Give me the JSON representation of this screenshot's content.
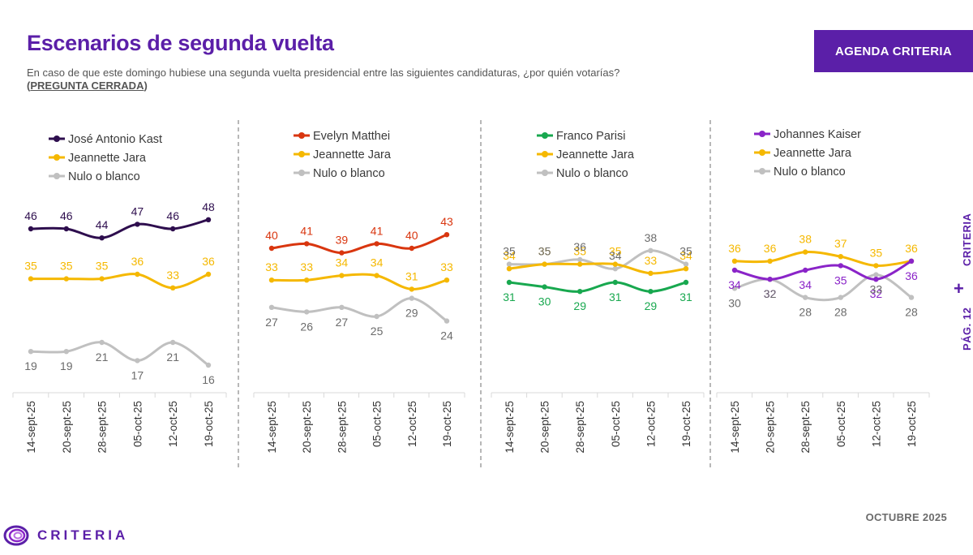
{
  "header": {
    "title": "Escenarios de segunda vuelta",
    "subtitle": "En caso de que este domingo hubiese una segunda vuelta presidencial entre las siguientes candidaturas, ¿por quién votarías?",
    "closed_question": "PREGUNTA CERRADA",
    "badge": "AGENDA CRITERIA"
  },
  "side": {
    "page": "PÁG. 12",
    "brand": "CRITERIA",
    "plus": "+"
  },
  "footer": {
    "logo_text": "CRITERIA",
    "date": "OCTUBRE 2025"
  },
  "colors": {
    "purple": "#5b1fa8",
    "kast": "#2e0e4e",
    "jara": "#f5b800",
    "nulo": "#c0c0c0",
    "matthei": "#d9360f",
    "parisi": "#18a84f",
    "kaiser": "#8a24c8"
  },
  "chart_data": [
    {
      "type": "line",
      "categories": [
        "14-sept-25",
        "20-sept-25",
        "28-sept-25",
        "05-oct-25",
        "12-oct-25",
        "19-oct-25"
      ],
      "series": [
        {
          "name": "José Antonio Kast",
          "color": "#2e0e4e",
          "values": [
            46,
            46,
            44,
            47,
            46,
            48
          ]
        },
        {
          "name": "Jeannette Jara",
          "color": "#f5b800",
          "values": [
            35,
            35,
            35,
            36,
            33,
            36
          ]
        },
        {
          "name": "Nulo o blanco",
          "color": "#c0c0c0",
          "values": [
            19,
            19,
            21,
            17,
            21,
            16
          ]
        }
      ]
    },
    {
      "type": "line",
      "categories": [
        "14-sept-25",
        "20-sept-25",
        "28-sept-25",
        "05-oct-25",
        "12-oct-25",
        "19-oct-25"
      ],
      "series": [
        {
          "name": "Evelyn Matthei",
          "color": "#d9360f",
          "values": [
            40,
            41,
            39,
            41,
            40,
            43
          ]
        },
        {
          "name": "Jeannette Jara",
          "color": "#f5b800",
          "values": [
            33,
            33,
            34,
            34,
            31,
            33
          ]
        },
        {
          "name": "Nulo o blanco",
          "color": "#c0c0c0",
          "values": [
            27,
            26,
            27,
            25,
            29,
            24
          ]
        }
      ]
    },
    {
      "type": "line",
      "categories": [
        "14-sept-25",
        "20-sept-25",
        "28-sept-25",
        "05-oct-25",
        "12-oct-25",
        "19-oct-25"
      ],
      "series": [
        {
          "name": "Franco Parisi",
          "color": "#18a84f",
          "values": [
            31,
            30,
            29,
            31,
            29,
            31
          ]
        },
        {
          "name": "Jeannette Jara",
          "color": "#f5b800",
          "values": [
            34,
            35,
            35,
            35,
            33,
            34
          ]
        },
        {
          "name": "Nulo o blanco",
          "color": "#c0c0c0",
          "values": [
            35,
            35,
            36,
            34,
            38,
            35
          ]
        }
      ]
    },
    {
      "type": "line",
      "categories": [
        "14-sept-25",
        "20-sept-25",
        "28-sept-25",
        "05-oct-25",
        "12-oct-25",
        "19-oct-25"
      ],
      "series": [
        {
          "name": "Johannes Kaiser",
          "color": "#8a24c8",
          "values": [
            34,
            32,
            34,
            35,
            32,
            36
          ]
        },
        {
          "name": "Jeannette Jara",
          "color": "#f5b800",
          "values": [
            36,
            36,
            38,
            37,
            35,
            36
          ]
        },
        {
          "name": "Nulo o blanco",
          "color": "#c0c0c0",
          "values": [
            30,
            32,
            28,
            28,
            33,
            28
          ]
        }
      ]
    }
  ]
}
